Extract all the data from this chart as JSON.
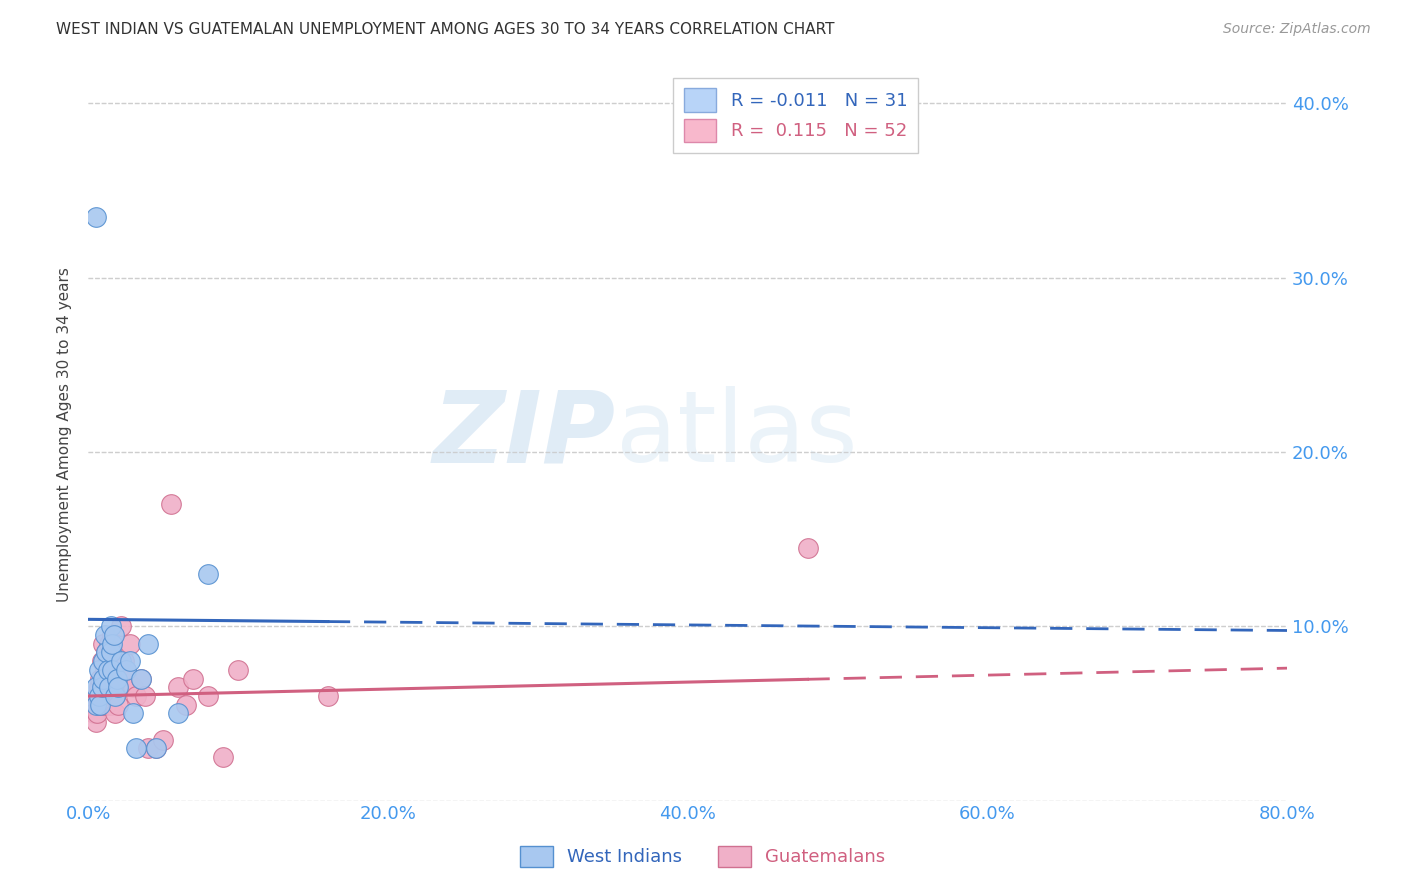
{
  "title": "WEST INDIAN VS GUATEMALAN UNEMPLOYMENT AMONG AGES 30 TO 34 YEARS CORRELATION CHART",
  "source": "Source: ZipAtlas.com",
  "ylabel": "Unemployment Among Ages 30 to 34 years",
  "xlim": [
    0.0,
    0.8
  ],
  "ylim": [
    0.0,
    0.42
  ],
  "west_indians_R": "-0.011",
  "west_indians_N": "31",
  "guatemalans_R": "0.115",
  "guatemalans_N": "52",
  "west_indians_color": "#a8c8f0",
  "west_indians_edge_color": "#5590d0",
  "west_indians_line_color": "#3366bb",
  "guatemalans_color": "#f0b0c8",
  "guatemalans_edge_color": "#d07090",
  "guatemalans_line_color": "#d06080",
  "legend_box_blue": "#b8d4f8",
  "legend_box_pink": "#f8b8cc",
  "background_color": "#ffffff",
  "watermark_zip": "ZIP",
  "watermark_atlas": "atlas",
  "wi_trend_start_x": 0.0,
  "wi_trend_end_solid_x": 0.16,
  "wi_trend_end_x": 0.8,
  "wi_trend_y0": 0.104,
  "wi_trend_slope": -0.008,
  "gt_trend_start_x": 0.0,
  "gt_trend_end_solid_x": 0.48,
  "gt_trend_end_x": 0.8,
  "gt_trend_y0": 0.06,
  "gt_trend_slope": 0.02,
  "west_indians_x": [
    0.005,
    0.005,
    0.007,
    0.007,
    0.008,
    0.009,
    0.01,
    0.01,
    0.011,
    0.012,
    0.013,
    0.014,
    0.015,
    0.015,
    0.016,
    0.016,
    0.017,
    0.018,
    0.019,
    0.02,
    0.022,
    0.025,
    0.028,
    0.03,
    0.032,
    0.035,
    0.04,
    0.045,
    0.06,
    0.08,
    0.005
  ],
  "west_indians_y": [
    0.065,
    0.055,
    0.075,
    0.06,
    0.055,
    0.065,
    0.08,
    0.07,
    0.095,
    0.085,
    0.075,
    0.065,
    0.1,
    0.085,
    0.09,
    0.075,
    0.095,
    0.06,
    0.07,
    0.065,
    0.08,
    0.075,
    0.08,
    0.05,
    0.03,
    0.07,
    0.09,
    0.03,
    0.05,
    0.13,
    0.335
  ],
  "guatemalans_x": [
    0.003,
    0.004,
    0.005,
    0.006,
    0.006,
    0.007,
    0.007,
    0.008,
    0.008,
    0.009,
    0.009,
    0.01,
    0.01,
    0.011,
    0.011,
    0.012,
    0.012,
    0.013,
    0.013,
    0.014,
    0.014,
    0.015,
    0.015,
    0.016,
    0.016,
    0.017,
    0.018,
    0.018,
    0.019,
    0.02,
    0.02,
    0.022,
    0.024,
    0.025,
    0.026,
    0.028,
    0.03,
    0.032,
    0.035,
    0.038,
    0.04,
    0.045,
    0.05,
    0.055,
    0.06,
    0.065,
    0.07,
    0.08,
    0.09,
    0.1,
    0.16,
    0.48
  ],
  "guatemalans_y": [
    0.055,
    0.05,
    0.045,
    0.06,
    0.05,
    0.065,
    0.055,
    0.07,
    0.06,
    0.08,
    0.055,
    0.09,
    0.06,
    0.075,
    0.065,
    0.085,
    0.055,
    0.08,
    0.065,
    0.09,
    0.07,
    0.085,
    0.055,
    0.095,
    0.06,
    0.075,
    0.06,
    0.05,
    0.075,
    0.065,
    0.055,
    0.1,
    0.08,
    0.075,
    0.07,
    0.09,
    0.065,
    0.06,
    0.07,
    0.06,
    0.03,
    0.03,
    0.035,
    0.17,
    0.065,
    0.055,
    0.07,
    0.06,
    0.025,
    0.075,
    0.06,
    0.145
  ]
}
